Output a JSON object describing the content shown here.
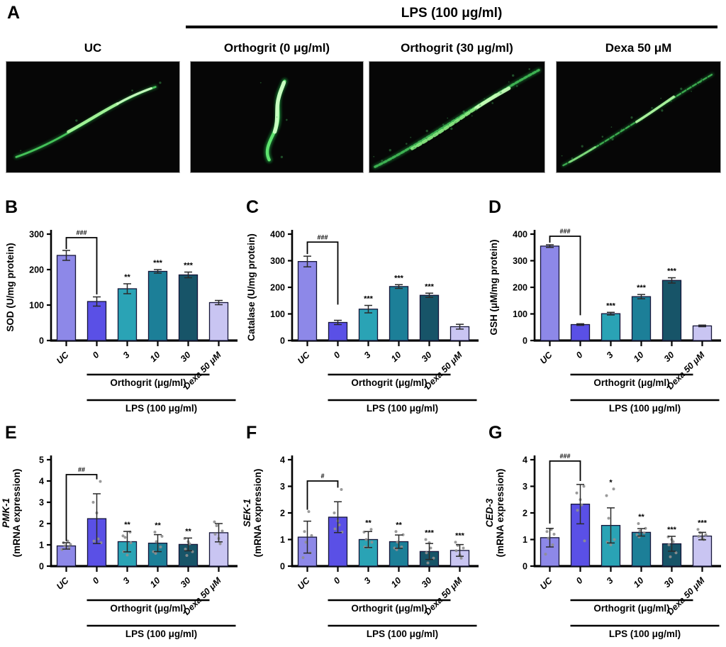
{
  "panel_a": {
    "label": "A",
    "group_header": "LPS (100 μg/ml)",
    "image_labels": [
      "UC",
      "Orthogrit (0 μg/ml)",
      "Orthogrit (30 μg/ml)",
      "Dexa 50 μM"
    ],
    "image_description": "GFP fluorescence micrographs of C. elegans worms on black background"
  },
  "bar_colors": [
    "#8d88e8",
    "#5a50e6",
    "#2aa3b5",
    "#1c7f98",
    "#175468",
    "#c9c5f2"
  ],
  "error_bar_color": "#2a2a2a",
  "scatter_point_color": "#8f8f8f",
  "chart_data": [
    {
      "panel": "B",
      "type": "bar",
      "ylabel": "SOD (U/mg protein)",
      "ylim": [
        0,
        300
      ],
      "yticks": [
        0,
        100,
        200,
        300
      ],
      "categories": [
        "UC",
        "0",
        "3",
        "10",
        "30",
        "Dexa 50 μM"
      ],
      "values": [
        240,
        110,
        146,
        195,
        185,
        107
      ],
      "errors": [
        14,
        13,
        14,
        5,
        8,
        6
      ],
      "significance": [
        "",
        "",
        "**",
        "***",
        "***",
        ""
      ],
      "bracket": {
        "label": "###",
        "top": 290,
        "left_bottom": 258,
        "right_bottom": 130
      },
      "xgroups": [
        {
          "label": "Orthogrit (μg/ml)",
          "from": 1,
          "to": 4
        },
        {
          "label": "LPS (100 μg/ml)",
          "from": 1,
          "to": 5
        }
      ]
    },
    {
      "panel": "C",
      "type": "bar",
      "ylabel": "Catalase (U/mg protein)",
      "ylim": [
        0,
        400
      ],
      "yticks": [
        0,
        100,
        200,
        300,
        400
      ],
      "categories": [
        "UC",
        "0",
        "3",
        "10",
        "30",
        "Dexa 50 μM"
      ],
      "values": [
        297,
        68,
        118,
        203,
        170,
        52
      ],
      "errors": [
        20,
        8,
        14,
        7,
        8,
        9
      ],
      "significance": [
        "",
        "",
        "***",
        "***",
        "***",
        ""
      ],
      "bracket": {
        "label": "###",
        "top": 370,
        "left_bottom": 325,
        "right_bottom": 135
      },
      "xgroups": [
        {
          "label": "Orthogrit (μg/ml)",
          "from": 1,
          "to": 4
        },
        {
          "label": "LPS (100 μg/ml)",
          "from": 1,
          "to": 5
        }
      ]
    },
    {
      "panel": "D",
      "type": "bar",
      "ylabel": "GSH (μM/mg protein)",
      "ylim": [
        0,
        400
      ],
      "yticks": [
        0,
        100,
        200,
        300,
        400
      ],
      "categories": [
        "UC",
        "0",
        "3",
        "10",
        "30",
        "Dexa 50 μM"
      ],
      "values": [
        355,
        60,
        101,
        165,
        226,
        55
      ],
      "errors": [
        5,
        3,
        5,
        8,
        10,
        3
      ],
      "significance": [
        "",
        "",
        "***",
        "***",
        "***",
        ""
      ],
      "bracket": {
        "label": "###",
        "top": 392,
        "left_bottom": 368,
        "right_bottom": 95
      },
      "xgroups": [
        {
          "label": "Orthogrit (μg/ml)",
          "from": 1,
          "to": 4
        },
        {
          "label": "LPS (100 μg/ml)",
          "from": 1,
          "to": 5
        }
      ]
    },
    {
      "panel": "E",
      "type": "bar",
      "ylabel_gene": "PMK-1",
      "ylabel_sub": "(mRNA expression)",
      "ylim": [
        0,
        5
      ],
      "yticks": [
        0,
        1,
        2,
        3,
        4,
        5
      ],
      "categories": [
        "UC",
        "0",
        "3",
        "10",
        "30",
        "Dexa 50 μM"
      ],
      "values": [
        0.95,
        2.23,
        1.15,
        1.08,
        1.02,
        1.57
      ],
      "errors": [
        0.15,
        1.17,
        0.48,
        0.4,
        0.3,
        0.43
      ],
      "significance": [
        "",
        "",
        "**",
        "**",
        "**",
        ""
      ],
      "bracket": {
        "label": "##",
        "top": 4.3,
        "left_bottom": 1.18,
        "right_bottom": 4.08
      },
      "points": [
        [
          0.78,
          0.88,
          0.95,
          1.02,
          1.1,
          1.18
        ],
        [
          1.1,
          1.18,
          1.28,
          2.5,
          3.0,
          3.98
        ],
        [
          0.52,
          0.68,
          1.1,
          1.35,
          1.42,
          1.6
        ],
        [
          0.6,
          0.68,
          0.9,
          1.15,
          1.4,
          1.6
        ],
        [
          0.5,
          0.68,
          0.8,
          1.05,
          1.15,
          1.3
        ],
        [
          1.05,
          1.3,
          1.5,
          1.65,
          1.9,
          2.08
        ]
      ],
      "xgroups": [
        {
          "label": "Orthogrit (μg/ml)",
          "from": 1,
          "to": 4
        },
        {
          "label": "LPS (100 μg/ml)",
          "from": 1,
          "to": 5
        }
      ]
    },
    {
      "panel": "F",
      "type": "bar",
      "ylabel_gene": "SEK-1",
      "ylabel_sub": "(mRNA expression)",
      "ylim": [
        0,
        4
      ],
      "yticks": [
        0,
        1,
        2,
        3,
        4
      ],
      "categories": [
        "UC",
        "0",
        "3",
        "10",
        "30",
        "Dexa 50 μM"
      ],
      "values": [
        1.09,
        1.84,
        1.0,
        0.92,
        0.55,
        0.59
      ],
      "errors": [
        0.6,
        0.58,
        0.3,
        0.25,
        0.3,
        0.22
      ],
      "significance": [
        "",
        "",
        "**",
        "**",
        "***",
        "***"
      ],
      "bracket": {
        "label": "#",
        "top": 3.2,
        "left_bottom": 2.12,
        "right_bottom": 2.95
      },
      "points": [
        [
          0.32,
          0.5,
          0.9,
          1.15,
          1.3,
          2.05
        ],
        [
          1.28,
          1.4,
          1.55,
          1.7,
          2.0,
          2.88
        ],
        [
          0.7,
          0.72,
          0.9,
          1.0,
          1.28,
          1.38
        ],
        [
          0.62,
          0.68,
          0.72,
          0.9,
          1.18,
          1.3
        ],
        [
          0.12,
          0.3,
          0.5,
          0.68,
          0.88,
          1.0
        ],
        [
          0.3,
          0.42,
          0.58,
          0.68,
          0.78,
          0.9
        ]
      ],
      "xgroups": [
        {
          "label": "Orthogrit (μg/ml)",
          "from": 1,
          "to": 4
        },
        {
          "label": "LPS (100 μg/ml)",
          "from": 1,
          "to": 5
        }
      ]
    },
    {
      "panel": "G",
      "type": "bar",
      "ylabel_gene": "CED-3",
      "ylabel_sub": "(mRNA expression)",
      "ylim": [
        0,
        4
      ],
      "yticks": [
        0,
        1,
        2,
        3,
        4
      ],
      "categories": [
        "UC",
        "0",
        "3",
        "10",
        "30",
        "Dexa 50 μM"
      ],
      "values": [
        1.07,
        2.33,
        1.53,
        1.27,
        0.84,
        1.13
      ],
      "errors": [
        0.35,
        0.74,
        0.66,
        0.14,
        0.28,
        0.14
      ],
      "significance": [
        "",
        "",
        "*",
        "**",
        "***",
        "***"
      ],
      "bracket": {
        "label": "###",
        "top": 3.95,
        "left_bottom": 1.6,
        "right_bottom": 3.2
      },
      "points": [
        [
          0.45,
          0.8,
          1.05,
          1.2,
          1.3,
          1.38
        ],
        [
          0.95,
          2.1,
          2.3,
          2.5,
          2.75,
          3.0
        ],
        [
          0.8,
          0.9,
          1.0,
          1.8,
          2.65,
          2.9
        ],
        [
          1.1,
          1.18,
          1.25,
          1.32,
          1.42,
          1.6
        ],
        [
          0.35,
          0.5,
          0.8,
          0.92,
          1.0,
          1.1
        ],
        [
          1.0,
          1.05,
          1.12,
          1.18,
          1.25,
          1.38
        ]
      ],
      "xgroups": [
        {
          "label": "Orthogrit (μg/ml)",
          "from": 1,
          "to": 4
        },
        {
          "label": "LPS (100 μg/ml)",
          "from": 1,
          "to": 5
        }
      ]
    }
  ]
}
